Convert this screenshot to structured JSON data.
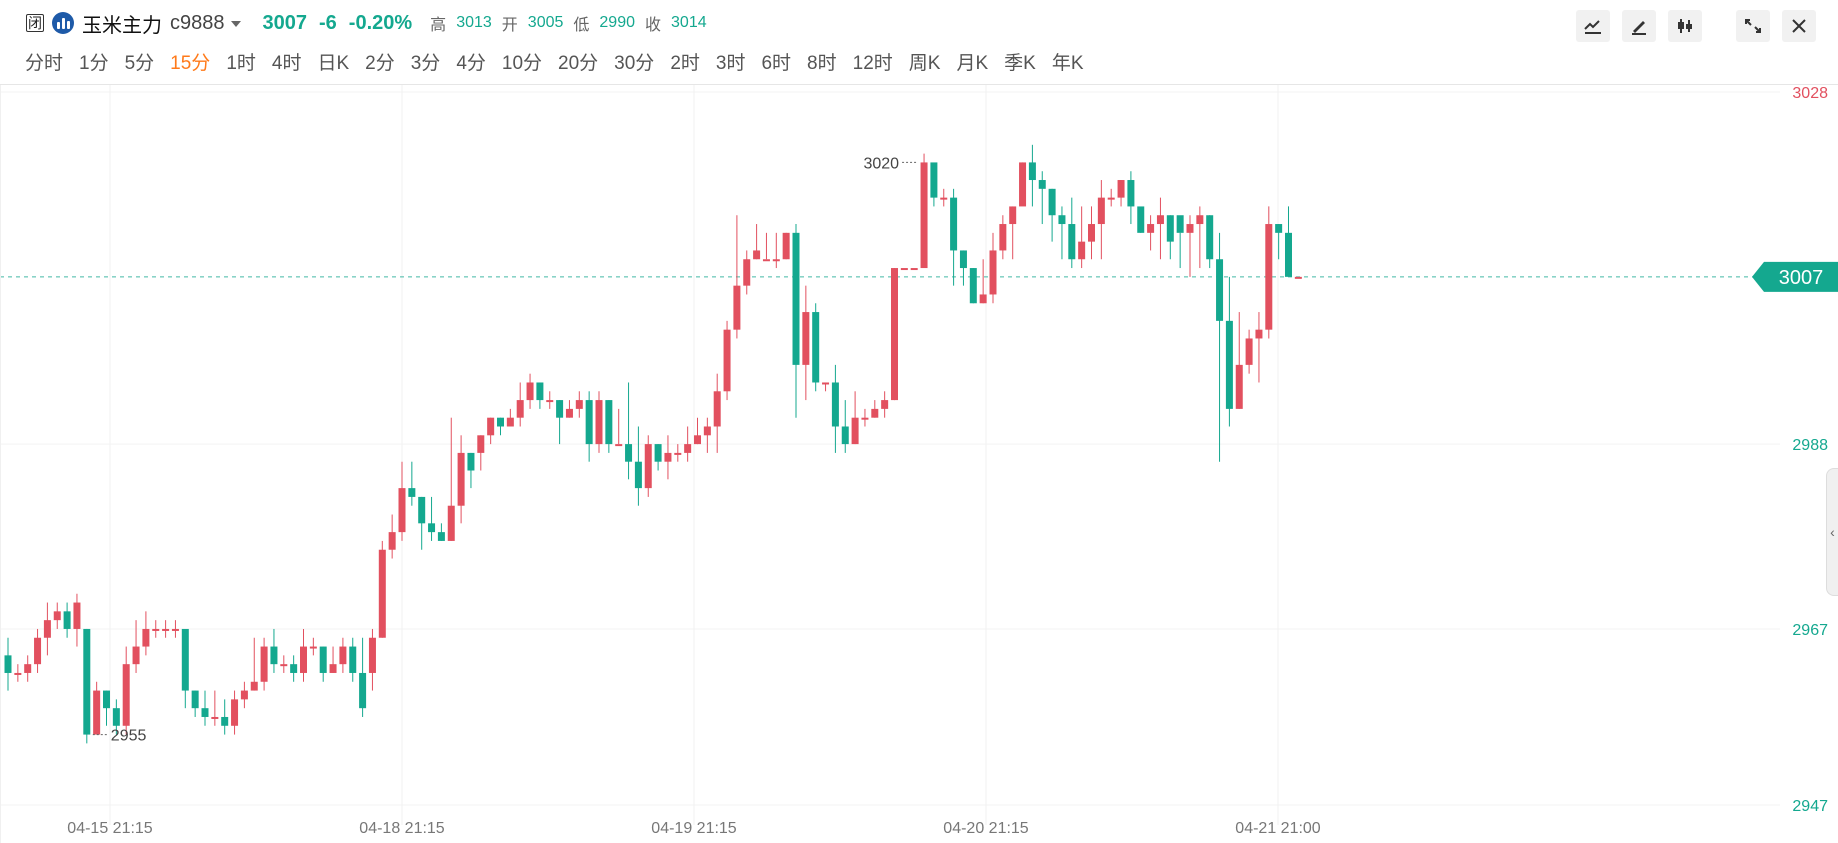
{
  "header": {
    "closed_badge": "闭",
    "symbol_name": "玉米主力",
    "symbol_code": "c9888",
    "last_price": "3007",
    "change": "-6",
    "change_percent": "-0.20%",
    "ohlc": {
      "high_label": "高",
      "high_value": "3013",
      "open_label": "开",
      "open_value": "3005",
      "low_label": "低",
      "low_value": "2990",
      "close_label": "收",
      "close_value": "3014"
    }
  },
  "tabs": {
    "items": [
      "分时",
      "1分",
      "5分",
      "15分",
      "1时",
      "4时",
      "日K",
      "2分",
      "3分",
      "4分",
      "10分",
      "20分",
      "30分",
      "2时",
      "3时",
      "6时",
      "8时",
      "12时",
      "周K",
      "月K",
      "季K",
      "年K"
    ],
    "active_index": 3
  },
  "toolbar": {
    "icons": [
      "indicator-icon",
      "draw-icon",
      "candles-icon",
      "collapse-icon",
      "close-icon"
    ]
  },
  "colors": {
    "up": "#e2505f",
    "down": "#14a88f",
    "accent_tab": "#ff7a1a",
    "current_price_tag": "#14a88f"
  },
  "chart_data": {
    "type": "candlestick",
    "y_axis": {
      "labels": [
        "3028",
        "2988",
        "2967",
        "2947"
      ],
      "ylim": [
        2947,
        3028
      ]
    },
    "x_axis": {
      "labels": [
        "04-15 21:15",
        "04-18 21:15",
        "04-19 21:15",
        "04-20 21:15",
        "04-21 21:00"
      ]
    },
    "current_price": 3007,
    "annotations": {
      "max_label": "3020",
      "min_label": "2955"
    },
    "candles": [
      [
        2964,
        2962,
        2966,
        2960
      ],
      [
        2962,
        2962,
        2963,
        2961
      ],
      [
        2962,
        2963,
        2964,
        2961
      ],
      [
        2963,
        2966,
        2967,
        2962
      ],
      [
        2966,
        2968,
        2970,
        2964
      ],
      [
        2968,
        2969,
        2970,
        2967
      ],
      [
        2969,
        2967,
        2970,
        2966
      ],
      [
        2967,
        2970,
        2971,
        2965
      ],
      [
        2967,
        2955,
        2967,
        2954
      ],
      [
        2955,
        2960,
        2961,
        2955
      ],
      [
        2960,
        2958,
        2960,
        2956
      ],
      [
        2958,
        2956,
        2959,
        2955
      ],
      [
        2956,
        2963,
        2965,
        2955
      ],
      [
        2963,
        2965,
        2968,
        2962
      ],
      [
        2965,
        2967,
        2969,
        2964
      ],
      [
        2967,
        2967,
        2968,
        2966
      ],
      [
        2967,
        2967,
        2968,
        2966
      ],
      [
        2967,
        2967,
        2968,
        2966
      ],
      [
        2967,
        2960,
        2962,
        2958
      ],
      [
        2960,
        2958,
        2960,
        2957
      ],
      [
        2958,
        2957,
        2960,
        2956
      ],
      [
        2957,
        2957,
        2960,
        2956
      ],
      [
        2957,
        2956,
        2959,
        2955
      ],
      [
        2956,
        2959,
        2960,
        2955
      ],
      [
        2959,
        2960,
        2961,
        2958
      ],
      [
        2960,
        2961,
        2966,
        2960
      ],
      [
        2961,
        2965,
        2966,
        2960
      ],
      [
        2965,
        2963,
        2967,
        2962
      ],
      [
        2963,
        2963,
        2964,
        2962
      ],
      [
        2963,
        2962,
        2964,
        2961
      ],
      [
        2962,
        2965,
        2967,
        2961
      ],
      [
        2965,
        2965,
        2966,
        2964
      ],
      [
        2965,
        2962,
        2965,
        2961
      ],
      [
        2962,
        2963,
        2965,
        2962
      ],
      [
        2963,
        2965,
        2966,
        2962
      ],
      [
        2965,
        2962,
        2966,
        2961
      ],
      [
        2962,
        2958,
        2966,
        2957
      ],
      [
        2962,
        2966,
        2967,
        2960
      ],
      [
        2966,
        2976,
        2977,
        2966
      ],
      [
        2976,
        2978,
        2980,
        2975
      ],
      [
        2978,
        2983,
        2986,
        2977
      ],
      [
        2983,
        2982,
        2986,
        2981
      ],
      [
        2982,
        2979,
        2982,
        2976
      ],
      [
        2979,
        2978,
        2982,
        2977
      ],
      [
        2978,
        2977,
        2979,
        2977
      ],
      [
        2977,
        2981,
        2991,
        2977
      ],
      [
        2981,
        2987,
        2989,
        2979
      ],
      [
        2987,
        2985,
        2987,
        2983
      ],
      [
        2987,
        2989,
        2989,
        2985
      ],
      [
        2989,
        2991,
        2991,
        2988
      ],
      [
        2991,
        2990,
        2991,
        2989
      ],
      [
        2990,
        2991,
        2992,
        2990
      ],
      [
        2991,
        2993,
        2995,
        2990
      ],
      [
        2993,
        2995,
        2996,
        2992
      ],
      [
        2995,
        2993,
        2995,
        2992
      ],
      [
        2993,
        2993,
        2994,
        2992
      ],
      [
        2993,
        2991,
        2993,
        2988
      ],
      [
        2991,
        2992,
        2993,
        2991
      ],
      [
        2992,
        2993,
        2994,
        2991
      ],
      [
        2993,
        2988,
        2994,
        2986
      ],
      [
        2988,
        2993,
        2994,
        2987
      ],
      [
        2993,
        2988,
        2993,
        2987
      ],
      [
        2988,
        2988,
        2992,
        2988
      ],
      [
        2988,
        2986,
        2995,
        2984
      ],
      [
        2986,
        2983,
        2990,
        2981
      ],
      [
        2983,
        2988,
        2989,
        2982
      ],
      [
        2988,
        2986,
        2988,
        2985
      ],
      [
        2986,
        2987,
        2989,
        2984
      ],
      [
        2987,
        2987,
        2988,
        2986
      ],
      [
        2987,
        2988,
        2990,
        2986
      ],
      [
        2988,
        2989,
        2991,
        2988
      ],
      [
        2989,
        2990,
        2991,
        2987
      ],
      [
        2990,
        2994,
        2996,
        2987
      ],
      [
        2994,
        3001,
        3002,
        2993
      ],
      [
        3001,
        3006,
        3014,
        3000
      ],
      [
        3006,
        3009,
        3010,
        3005
      ],
      [
        3009,
        3010,
        3013,
        3009
      ],
      [
        3009,
        3009,
        3012,
        3009
      ],
      [
        3009,
        3009,
        3012,
        3008
      ],
      [
        3009,
        3012,
        3012,
        3009
      ],
      [
        3012,
        2997,
        3013,
        2991
      ],
      [
        2997,
        3003,
        3006,
        2993
      ],
      [
        3003,
        2995,
        3004,
        2994
      ],
      [
        2995,
        2995,
        2995,
        2994
      ],
      [
        2995,
        2990,
        2997,
        2987
      ],
      [
        2990,
        2988,
        2993,
        2987
      ],
      [
        2988,
        2991,
        2994,
        2988
      ],
      [
        2991,
        2991,
        2992,
        2990
      ],
      [
        2991,
        2992,
        2993,
        2991
      ],
      [
        2992,
        2993,
        2994,
        2991
      ],
      [
        2993,
        3008,
        3008,
        2993
      ],
      [
        3008,
        3008,
        3008,
        3008
      ],
      [
        3008,
        3008,
        3008,
        3008
      ],
      [
        3008,
        3020,
        3021,
        3013
      ],
      [
        3020,
        3016,
        3018,
        3015
      ],
      [
        3016,
        3016,
        3017,
        3015
      ],
      [
        3016,
        3010,
        3017,
        3006
      ],
      [
        3010,
        3008,
        3010,
        3006
      ],
      [
        3008,
        3004,
        3008,
        3004
      ],
      [
        3004,
        3005,
        3009,
        3004
      ],
      [
        3005,
        3010,
        3012,
        3004
      ],
      [
        3010,
        3013,
        3014,
        3009
      ],
      [
        3013,
        3015,
        3015,
        3009
      ],
      [
        3015,
        3020,
        3020,
        3017
      ],
      [
        3020,
        3018,
        3022,
        3015
      ],
      [
        3018,
        3017,
        3019,
        3013
      ],
      [
        3017,
        3014,
        3017,
        3011
      ],
      [
        3014,
        3013,
        3015,
        3009
      ],
      [
        3013,
        3009,
        3016,
        3008
      ],
      [
        3009,
        3011,
        3015,
        3008
      ],
      [
        3011,
        3013,
        3015,
        3009
      ],
      [
        3013,
        3016,
        3018,
        3009
      ],
      [
        3016,
        3016,
        3017,
        3015
      ],
      [
        3016,
        3018,
        3018,
        3015
      ],
      [
        3018,
        3015,
        3019,
        3013
      ],
      [
        3015,
        3012,
        3014,
        3012
      ],
      [
        3012,
        3013,
        3014,
        3010
      ],
      [
        3013,
        3014,
        3016,
        3009
      ],
      [
        3014,
        3011,
        3014,
        3009
      ],
      [
        3014,
        3012,
        3012,
        3008
      ],
      [
        3012,
        3013,
        3014,
        3007
      ],
      [
        3013,
        3014,
        3015,
        3008
      ],
      [
        3014,
        3009,
        3014,
        3008
      ],
      [
        3009,
        3002,
        3012,
        2986
      ],
      [
        3002,
        2992,
        3007,
        2990
      ],
      [
        2992,
        2997,
        3003,
        2992
      ],
      [
        2997,
        3000,
        3001,
        2996
      ],
      [
        3000,
        3001,
        3003,
        2995
      ],
      [
        3001,
        3013,
        3015,
        3000
      ],
      [
        3013,
        3012,
        3013,
        3009
      ],
      [
        3012,
        3007,
        3015,
        3008
      ],
      [
        3007,
        3007,
        3007,
        3007
      ]
    ]
  }
}
